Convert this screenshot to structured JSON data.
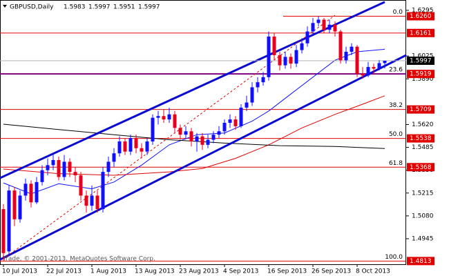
{
  "chart_data": {
    "type": "candlestick",
    "title": "GBPUSD,Daily",
    "header_values": [
      "1.5983",
      "1.5997",
      "1.5951",
      "1.5997"
    ],
    "watermark": "Trade, © 2001-2013, MetaQuotes Software Corp.",
    "categories": [
      "10 Jul 2013",
      null,
      null,
      null,
      null,
      null,
      null,
      null,
      "22 Jul 2013",
      null,
      null,
      null,
      null,
      null,
      null,
      null,
      "1 Aug 2013",
      null,
      null,
      null,
      null,
      null,
      null,
      null,
      "13 Aug 2013",
      null,
      null,
      null,
      null,
      null,
      null,
      null,
      "23 Aug 2013",
      null,
      null,
      null,
      null,
      null,
      null,
      null,
      "4 Sep 2013",
      null,
      null,
      null,
      null,
      null,
      null,
      null,
      "16 Sep 2013",
      null,
      null,
      null,
      null,
      null,
      null,
      null,
      "26 Sep 2013",
      null,
      null,
      null,
      null,
      null,
      null,
      null,
      "8 Oct 2013",
      null,
      null,
      null,
      null,
      null
    ],
    "open": [
      1.512,
      1.487,
      1.523,
      1.506,
      1.52,
      1.527,
      1.516,
      1.528,
      1.535,
      1.538,
      1.541,
      1.531,
      1.54,
      1.534,
      1.532,
      1.52,
      1.514,
      1.52,
      1.512,
      1.534,
      1.54,
      1.545,
      1.552,
      1.546,
      1.554,
      1.548,
      1.546,
      1.552,
      1.566,
      1.567,
      1.565,
      1.568,
      1.56,
      1.556,
      1.558,
      1.552,
      1.555,
      1.55,
      1.553,
      1.556,
      1.558,
      1.563,
      1.565,
      1.561,
      1.572,
      1.575,
      1.584,
      1.587,
      1.59,
      1.614,
      1.603,
      1.597,
      1.602,
      1.598,
      1.606,
      1.61,
      1.617,
      1.622,
      1.624,
      1.618,
      1.621,
      1.617,
      1.6,
      1.605,
      1.608,
      1.592,
      1.591,
      1.596,
      1.595,
      1.5983
    ],
    "high": [
      1.515,
      1.526,
      1.525,
      1.523,
      1.53,
      1.529,
      1.531,
      1.538,
      1.542,
      1.544,
      1.543,
      1.544,
      1.542,
      1.537,
      1.534,
      1.523,
      1.526,
      1.523,
      1.537,
      1.543,
      1.548,
      1.555,
      1.554,
      1.556,
      1.556,
      1.551,
      1.554,
      1.568,
      1.57,
      1.571,
      1.572,
      1.57,
      1.562,
      1.561,
      1.56,
      1.557,
      1.557,
      1.556,
      1.558,
      1.561,
      1.565,
      1.568,
      1.567,
      1.574,
      1.579,
      1.587,
      1.59,
      1.593,
      1.617,
      1.616,
      1.605,
      1.605,
      1.604,
      1.609,
      1.613,
      1.62,
      1.625,
      1.626,
      1.625,
      1.624,
      1.623,
      1.618,
      1.608,
      1.61,
      1.609,
      1.596,
      1.599,
      1.598,
      1.6,
      1.5997
    ],
    "low": [
      1.4813,
      1.485,
      1.502,
      1.504,
      1.517,
      1.513,
      1.515,
      1.526,
      1.532,
      1.535,
      1.529,
      1.529,
      1.531,
      1.528,
      1.517,
      1.51,
      1.511,
      1.51,
      1.51,
      1.531,
      1.537,
      1.543,
      1.544,
      1.544,
      1.545,
      1.542,
      1.544,
      1.55,
      1.562,
      1.563,
      1.563,
      1.557,
      1.553,
      1.554,
      1.549,
      1.546,
      1.547,
      1.548,
      1.551,
      1.554,
      1.556,
      1.56,
      1.559,
      1.56,
      1.57,
      1.573,
      1.581,
      1.585,
      1.588,
      1.6,
      1.594,
      1.595,
      1.595,
      1.596,
      1.604,
      1.608,
      1.615,
      1.62,
      1.616,
      1.616,
      1.614,
      1.598,
      1.598,
      1.603,
      1.59,
      1.589,
      1.59,
      1.592,
      1.594,
      1.5951
    ],
    "close": [
      1.486,
      1.523,
      1.506,
      1.52,
      1.527,
      1.516,
      1.528,
      1.535,
      1.538,
      1.541,
      1.531,
      1.54,
      1.534,
      1.532,
      1.52,
      1.514,
      1.52,
      1.512,
      1.534,
      1.54,
      1.545,
      1.552,
      1.546,
      1.554,
      1.548,
      1.546,
      1.552,
      1.566,
      1.567,
      1.565,
      1.568,
      1.56,
      1.556,
      1.558,
      1.552,
      1.555,
      1.55,
      1.553,
      1.556,
      1.558,
      1.563,
      1.565,
      1.561,
      1.572,
      1.575,
      1.584,
      1.587,
      1.59,
      1.614,
      1.603,
      1.597,
      1.602,
      1.598,
      1.606,
      1.61,
      1.617,
      1.622,
      1.624,
      1.618,
      1.621,
      1.617,
      1.6,
      1.605,
      1.608,
      1.592,
      1.591,
      1.596,
      1.595,
      1.5983,
      1.5997
    ],
    "up_color": "#1010ff",
    "down_color": "#e8001c",
    "overlays": [
      {
        "color": "#1010ff",
        "width": 1,
        "x": [
          0,
          5,
          10,
          16,
          20,
          25,
          30,
          35,
          40,
          45,
          48,
          52,
          56,
          60,
          64,
          69
        ],
        "values": [
          1.5275,
          1.521,
          1.527,
          1.524,
          1.528,
          1.538,
          1.55,
          1.556,
          1.557,
          1.564,
          1.57,
          1.58,
          1.59,
          1.6,
          1.605,
          1.6065
        ]
      },
      {
        "color": "#e00000",
        "width": 1,
        "x": [
          0,
          10,
          20,
          30,
          36,
          42,
          48,
          54,
          60,
          65,
          69
        ],
        "values": [
          1.5357,
          1.533,
          1.532,
          1.534,
          1.536,
          1.542,
          1.55,
          1.56,
          1.568,
          1.574,
          1.579
        ]
      },
      {
        "color": "#000000",
        "width": 1,
        "x": [
          0,
          10,
          20,
          30,
          40,
          50,
          60,
          69
        ],
        "values": [
          1.5622,
          1.559,
          1.556,
          1.553,
          1.551,
          1.5495,
          1.549,
          1.5478
        ]
      },
      {
        "color": "#0a0ad0",
        "width": 3,
        "x": [
          -0.6,
          69
        ],
        "values": [
          1.5304,
          1.6344
        ]
      },
      {
        "color": "#0a0ad0",
        "width": 3,
        "x": [
          -0.6,
          72.9
        ],
        "values": [
          1.4822,
          1.603
        ]
      },
      {
        "color": "#e00000",
        "width": 1,
        "dashed": true,
        "x": [
          0,
          60
        ],
        "values": [
          1.4826,
          1.6266
        ]
      }
    ],
    "levels": [
      {
        "value": 1.626,
        "label": "1.6260",
        "fib": "0.0",
        "color": "#e00000"
      },
      {
        "value": 1.6161,
        "label": "1.6161",
        "color": "#e00000"
      },
      {
        "value": 1.5919,
        "label": "1.5919",
        "fib": "23.6",
        "color": "#800080"
      },
      {
        "value": 1.5709,
        "label": "1.5709",
        "fib": "38.2",
        "color": "#e00000"
      },
      {
        "value": 1.5538,
        "label": "1.5538",
        "fib": "50.0",
        "color": "#e00000"
      },
      {
        "value": 1.5368,
        "label": "1.5368",
        "fib": "61.8",
        "color": "#e00000"
      },
      {
        "value": 1.4813,
        "label": "1.4813",
        "fib": "100.0",
        "color": "#e00000"
      }
    ],
    "last_price": {
      "value": 1.5997,
      "label": "1.5997"
    },
    "ylim": [
      1.4794,
      1.6356
    ],
    "yticks": [
      1.6295,
      1.6025,
      {
        "value": 1.589,
        "label": "1.5890"
      },
      {
        "value": 1.562,
        "label": "1.5620"
      },
      1.5485,
      {
        "value": 1.535,
        "label": "1.5350"
      },
      1.5215,
      {
        "value": 1.508,
        "label": "1.5080"
      },
      1.4945
    ]
  }
}
